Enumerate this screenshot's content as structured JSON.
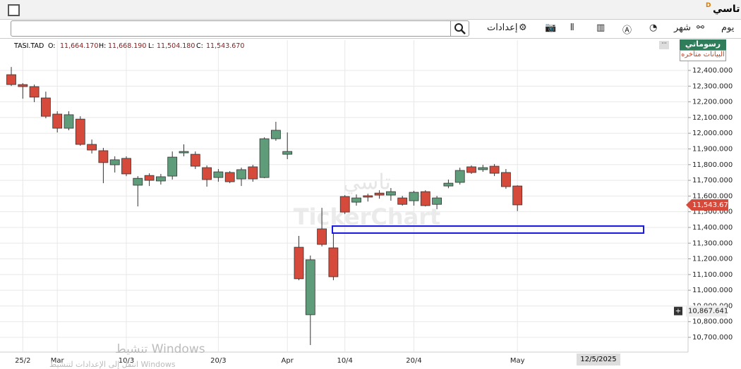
{
  "window": {
    "title": "تاسي",
    "badge": "D"
  },
  "toolbar": {
    "day": "يوم",
    "month": "شهر",
    "settings": "إعدادات"
  },
  "info": {
    "symbol": "TASI.TAD",
    "o_label": "O:",
    "o": "11,664.170",
    "h_label": "H:",
    "h": "11,668.190",
    "l_label": "L:",
    "l": "11,504.180",
    "c_label": "C:",
    "c": "11,543.670"
  },
  "badges": {
    "drawings": "رسوماتي",
    "delayed": "البيانات متأخره"
  },
  "watermark": {
    "arabic": "تاسي",
    "brand": "TickerChart"
  },
  "date_box": "12/5/2025",
  "activation": {
    "line1": "تنشيط Windows",
    "line2": "انتقل إلى الإعدادات لتنشيط Windows"
  },
  "chart_data": {
    "type": "candlestick",
    "categories": [
      null,
      "25/2",
      null,
      null,
      "Mar",
      null,
      null,
      null,
      null,
      null,
      "10/3",
      null,
      null,
      null,
      null,
      null,
      null,
      null,
      "20/3",
      null,
      null,
      null,
      null,
      null,
      "Apr",
      null,
      null,
      null,
      null,
      "10/4",
      null,
      null,
      null,
      null,
      null,
      "20/4",
      null,
      null,
      null,
      null,
      null,
      null,
      null,
      null,
      "May"
    ],
    "open": [
      12373,
      12310,
      12297,
      12225,
      12122,
      12032,
      12090,
      11929,
      11889,
      11799,
      11840,
      11669,
      11731,
      11696,
      11727,
      11875,
      11866,
      11781,
      11718,
      11750,
      11709,
      11786,
      11718,
      11965,
      11866,
      11274,
      10844,
      11391,
      11270,
      11597,
      11561,
      11602,
      11619,
      11606,
      11588,
      11570,
      11628,
      11547,
      11664,
      11687,
      11786,
      11768,
      11790,
      11750,
      11664.17
    ],
    "high": [
      12422,
      12319,
      12310,
      12265,
      12140,
      12140,
      12108,
      11960,
      11907,
      11853,
      11853,
      11727,
      11745,
      11741,
      11884,
      11929,
      11884,
      11795,
      11772,
      11759,
      11781,
      11799,
      11974,
      12073,
      12005,
      11346,
      11221,
      11525,
      11369,
      11606,
      11610,
      11615,
      11637,
      11651,
      11601,
      11633,
      11637,
      11601,
      11705,
      11781,
      11795,
      11799,
      11804,
      11772,
      11668.19
    ],
    "low": [
      12301,
      12220,
      12198,
      12095,
      12005,
      12019,
      11920,
      11871,
      11682,
      11750,
      11727,
      11534,
      11664,
      11673,
      11705,
      11853,
      11772,
      11660,
      11691,
      11682,
      11664,
      11691,
      11714,
      11952,
      11835,
      11064,
      10651,
      11279,
      11064,
      11485,
      11539,
      11565,
      11583,
      11570,
      11539,
      11539,
      11534,
      11516,
      11650,
      11673,
      11741,
      11754,
      11727,
      11646,
      11504.18
    ],
    "close": [
      12310,
      12297,
      12230,
      12108,
      12032,
      12118,
      11929,
      11893,
      11813,
      11831,
      11741,
      11713,
      11700,
      11723,
      11848,
      11884,
      11790,
      11705,
      11754,
      11691,
      11768,
      11709,
      11965,
      12019,
      11884,
      11073,
      11194,
      11292,
      11086,
      11498,
      11588,
      11593,
      11606,
      11628,
      11547,
      11624,
      11539,
      11588,
      11682,
      11763,
      11750,
      11781,
      11745,
      11660,
      11543.67
    ],
    "up_color": "#5e9c7a",
    "down_color": "#d64a3b",
    "ylim": [
      10606,
      12593
    ],
    "yticks": [
      {
        "value": 10700,
        "label": "10,700.000"
      },
      {
        "value": 10800,
        "label": "10,800.000"
      },
      {
        "value": 10900,
        "label": "10,900.000"
      },
      {
        "value": 11000,
        "label": "11,000.000"
      },
      {
        "value": 11100,
        "label": "11,100.000"
      },
      {
        "value": 11200,
        "label": "11,200.000"
      },
      {
        "value": 11300,
        "label": "11,300.000"
      },
      {
        "value": 11400,
        "label": "11,400.000"
      },
      {
        "value": 11500,
        "label": "11,500.000"
      },
      {
        "value": 11600,
        "label": "11,600.000"
      },
      {
        "value": 11700,
        "label": "11,700.000"
      },
      {
        "value": 11800,
        "label": "11,800.000"
      },
      {
        "value": 11900,
        "label": "11,900.000"
      },
      {
        "value": 12000,
        "label": "12,000.000"
      },
      {
        "value": 12100,
        "label": "12,100.000"
      },
      {
        "value": 12200,
        "label": "12,200.000"
      },
      {
        "value": 12300,
        "label": "12,300.000"
      },
      {
        "value": 12400,
        "label": "12,400.000"
      }
    ],
    "grid": true,
    "last_price": {
      "value": 11543.67,
      "label": "11,543.670"
    },
    "crosshair": {
      "value": 10867.641,
      "label": "10,867.641"
    }
  }
}
